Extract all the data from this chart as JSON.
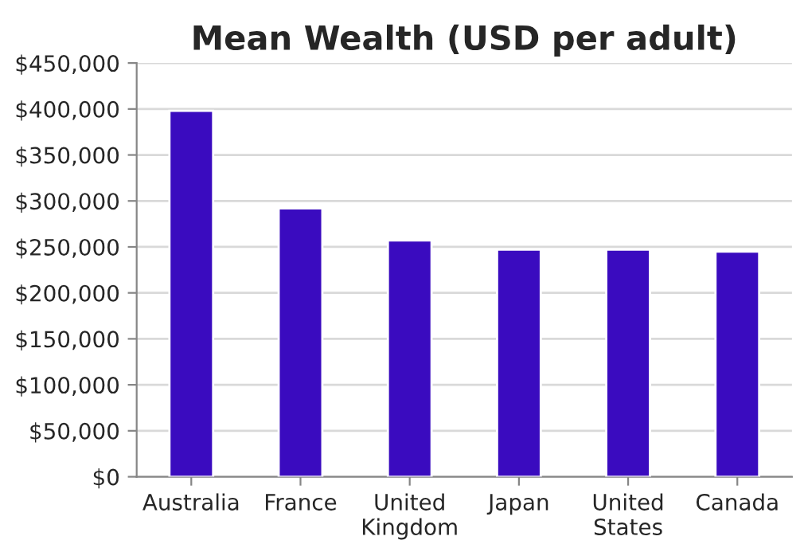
{
  "chart_data": {
    "type": "bar",
    "title": "Mean Wealth (USD per adult)",
    "categories": [
      "Australia",
      "France",
      "United\nKingdom",
      "Japan",
      "United\nStates",
      "Canada"
    ],
    "values": [
      398000,
      292000,
      257000,
      247000,
      247000,
      245000
    ],
    "color": "#3a0bbf",
    "ylim": [
      0,
      450000
    ],
    "yticks": [
      {
        "value": 0,
        "label": "$0"
      },
      {
        "value": 50000,
        "label": "$50,000"
      },
      {
        "value": 100000,
        "label": "$100,000"
      },
      {
        "value": 150000,
        "label": "$150,000"
      },
      {
        "value": 200000,
        "label": "$200,000"
      },
      {
        "value": 250000,
        "label": "$250,000"
      },
      {
        "value": 300000,
        "label": "$300,000"
      },
      {
        "value": 350000,
        "label": "$350,000"
      },
      {
        "value": 400000,
        "label": "$400,000"
      },
      {
        "value": 450000,
        "label": "$450,000"
      }
    ],
    "grid": "y",
    "legend": false
  }
}
